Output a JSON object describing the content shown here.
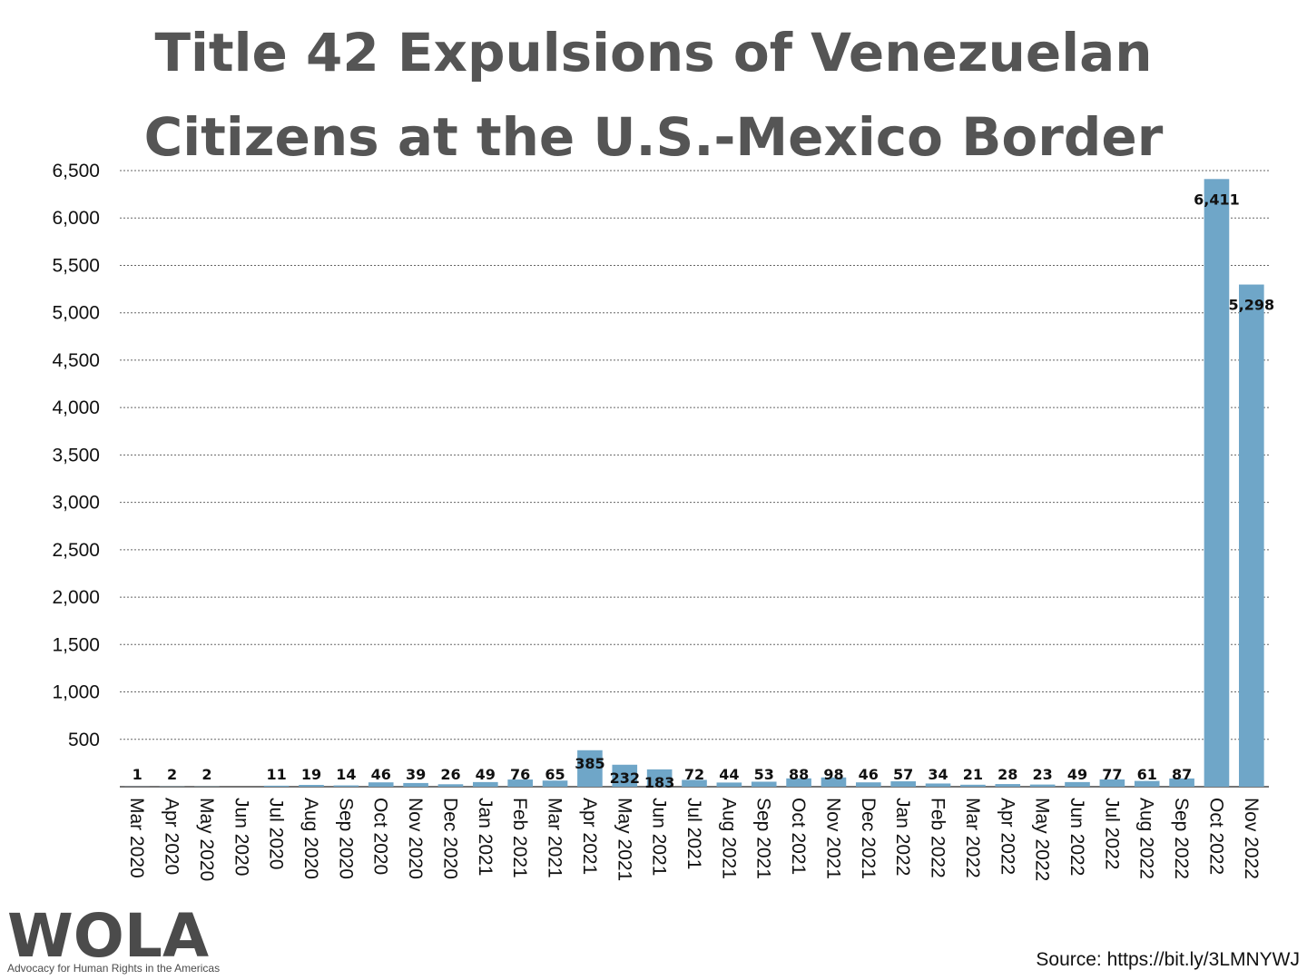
{
  "chart_data": {
    "type": "bar",
    "title": "Title 42 Expulsions of Venezuelan Citizens at the U.S.-Mexico Border",
    "categories": [
      "Mar 2020",
      "Apr 2020",
      "May 2020",
      "Jun 2020",
      "Jul 2020",
      "Aug 2020",
      "Sep 2020",
      "Oct 2020",
      "Nov 2020",
      "Dec 2020",
      "Jan 2021",
      "Feb 2021",
      "Mar 2021",
      "Apr 2021",
      "May 2021",
      "Jun 2021",
      "Jul 2021",
      "Aug 2021",
      "Sep 2021",
      "Oct 2021",
      "Nov 2021",
      "Dec 2021",
      "Jan 2022",
      "Feb 2022",
      "Mar 2022",
      "Apr 2022",
      "May 2022",
      "Jun 2022",
      "Jul 2022",
      "Aug 2022",
      "Sep 2022",
      "Oct 2022",
      "Nov 2022"
    ],
    "values": [
      1,
      2,
      2,
      0,
      11,
      19,
      14,
      46,
      39,
      26,
      49,
      76,
      65,
      385,
      232,
      183,
      72,
      44,
      53,
      88,
      98,
      46,
      57,
      34,
      21,
      28,
      23,
      49,
      77,
      61,
      87,
      6411,
      5298
    ],
    "data_labels": [
      "1",
      "2",
      "2",
      "",
      "11",
      "19",
      "14",
      "46",
      "39",
      "26",
      "49",
      "76",
      "65",
      "385",
      "232",
      "183",
      "72",
      "44",
      "53",
      "88",
      "98",
      "46",
      "57",
      "34",
      "21",
      "28",
      "23",
      "49",
      "77",
      "61",
      "87",
      "6,411",
      "5,298"
    ],
    "yticks": [
      "500",
      "1,000",
      "1,500",
      "2,000",
      "2,500",
      "3,000",
      "3,500",
      "4,000",
      "4,500",
      "5,000",
      "5,500",
      "6,000",
      "6,500"
    ],
    "ytick_values": [
      500,
      1000,
      1500,
      2000,
      2500,
      3000,
      3500,
      4000,
      4500,
      5000,
      5500,
      6000,
      6500
    ],
    "ylim": [
      0,
      6500
    ],
    "xlabel": "",
    "ylabel": "",
    "grid": "horizontal dotted",
    "bar_color": "#6fa6c8"
  },
  "footer": {
    "logo_text": "WOLA",
    "logo_tagline": "Advocacy for Human Rights in the Americas",
    "source": "Source: https://bit.ly/3LMNYWJ"
  }
}
